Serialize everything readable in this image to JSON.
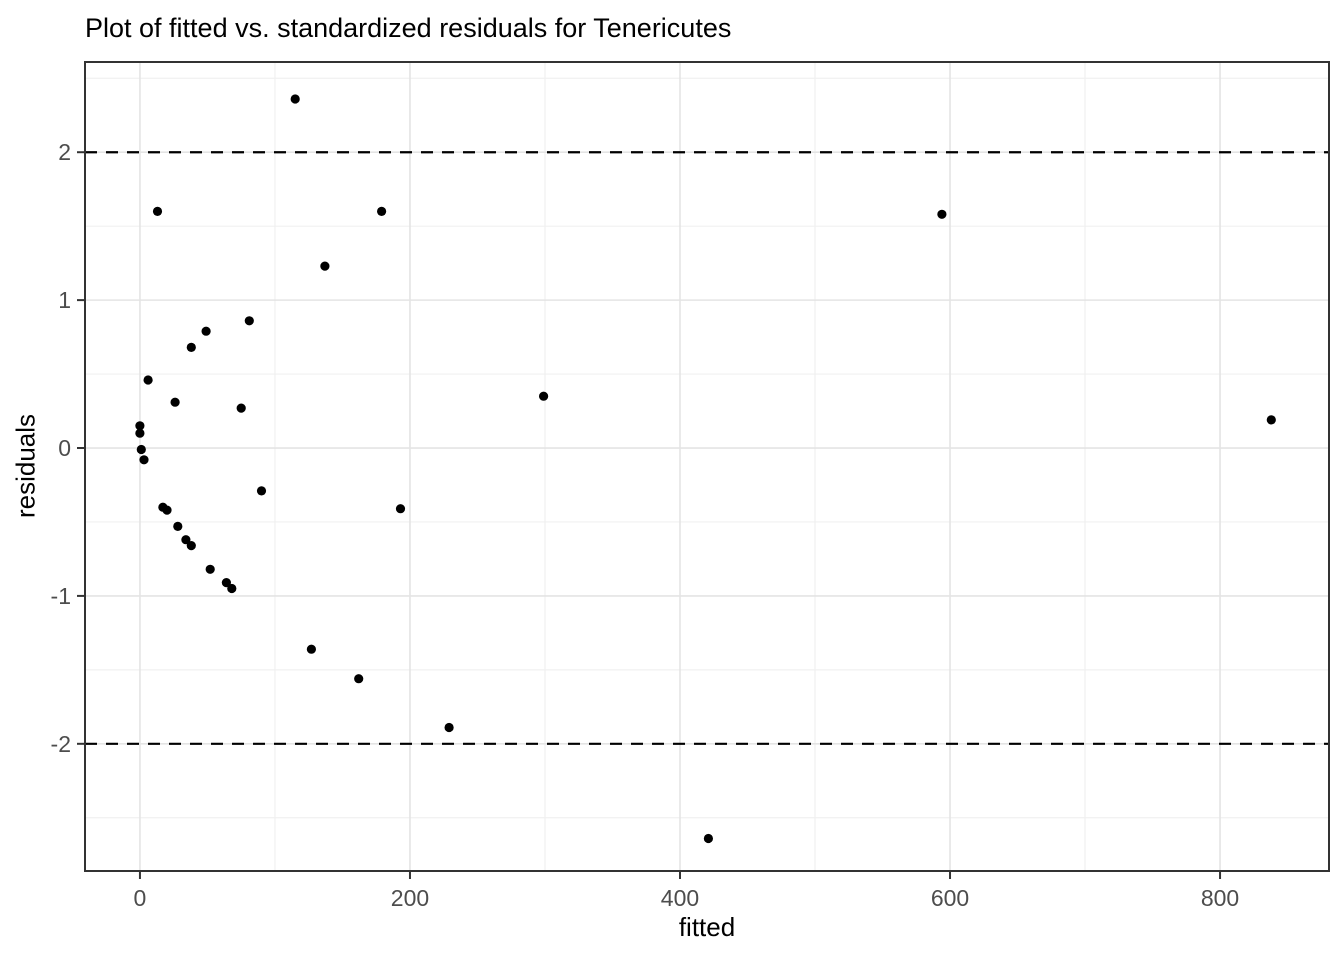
{
  "chart_data": {
    "type": "scatter",
    "title": "Plot of fitted vs. standardized residuals for Tenericutes",
    "xlabel": "fitted",
    "ylabel": "residuals",
    "x_ticks": [
      0,
      200,
      400,
      600,
      800
    ],
    "x_minor_ticks": [
      100,
      300,
      500,
      700
    ],
    "y_ticks": [
      -2,
      -1,
      0,
      1,
      2
    ],
    "y_minor_ticks": [
      -2.5,
      -1.5,
      -0.5,
      0.5,
      1.5,
      2.5
    ],
    "xlim": [
      -40.7,
      880.7
    ],
    "ylim": [
      -2.86,
      2.61
    ],
    "grid": true,
    "legend": "none",
    "reference_lines": [
      {
        "y": 2,
        "style": "dashed",
        "color": "#000000"
      },
      {
        "y": -2,
        "style": "dashed",
        "color": "#000000"
      }
    ],
    "point_color": "#000000",
    "points": [
      [
        115,
        2.36
      ],
      [
        13,
        1.6
      ],
      [
        179,
        1.6
      ],
      [
        594,
        1.58
      ],
      [
        137,
        1.23
      ],
      [
        81,
        0.86
      ],
      [
        49,
        0.79
      ],
      [
        38,
        0.68
      ],
      [
        6,
        0.46
      ],
      [
        299,
        0.35
      ],
      [
        26,
        0.31
      ],
      [
        75,
        0.27
      ],
      [
        838,
        0.19
      ],
      [
        0,
        0.15
      ],
      [
        0,
        0.1
      ],
      [
        1,
        -0.01
      ],
      [
        3,
        -0.08
      ],
      [
        17,
        -0.4
      ],
      [
        20,
        -0.42
      ],
      [
        28,
        -0.53
      ],
      [
        34,
        -0.62
      ],
      [
        38,
        -0.66
      ],
      [
        52,
        -0.82
      ],
      [
        64,
        -0.91
      ],
      [
        68,
        -0.95
      ],
      [
        90,
        -0.29
      ],
      [
        193,
        -0.41
      ],
      [
        127,
        -1.36
      ],
      [
        162,
        -1.56
      ],
      [
        229,
        -1.89
      ],
      [
        421,
        -2.64
      ]
    ]
  },
  "style": {
    "panel_background": "#FFFFFF",
    "panel_border": "#333333",
    "grid_major": "#E4E4E4",
    "grid_minor": "#F0F0F0",
    "tick_color": "#333333",
    "tick_label_color": "#4D4D4D",
    "text_color": "#000000"
  }
}
